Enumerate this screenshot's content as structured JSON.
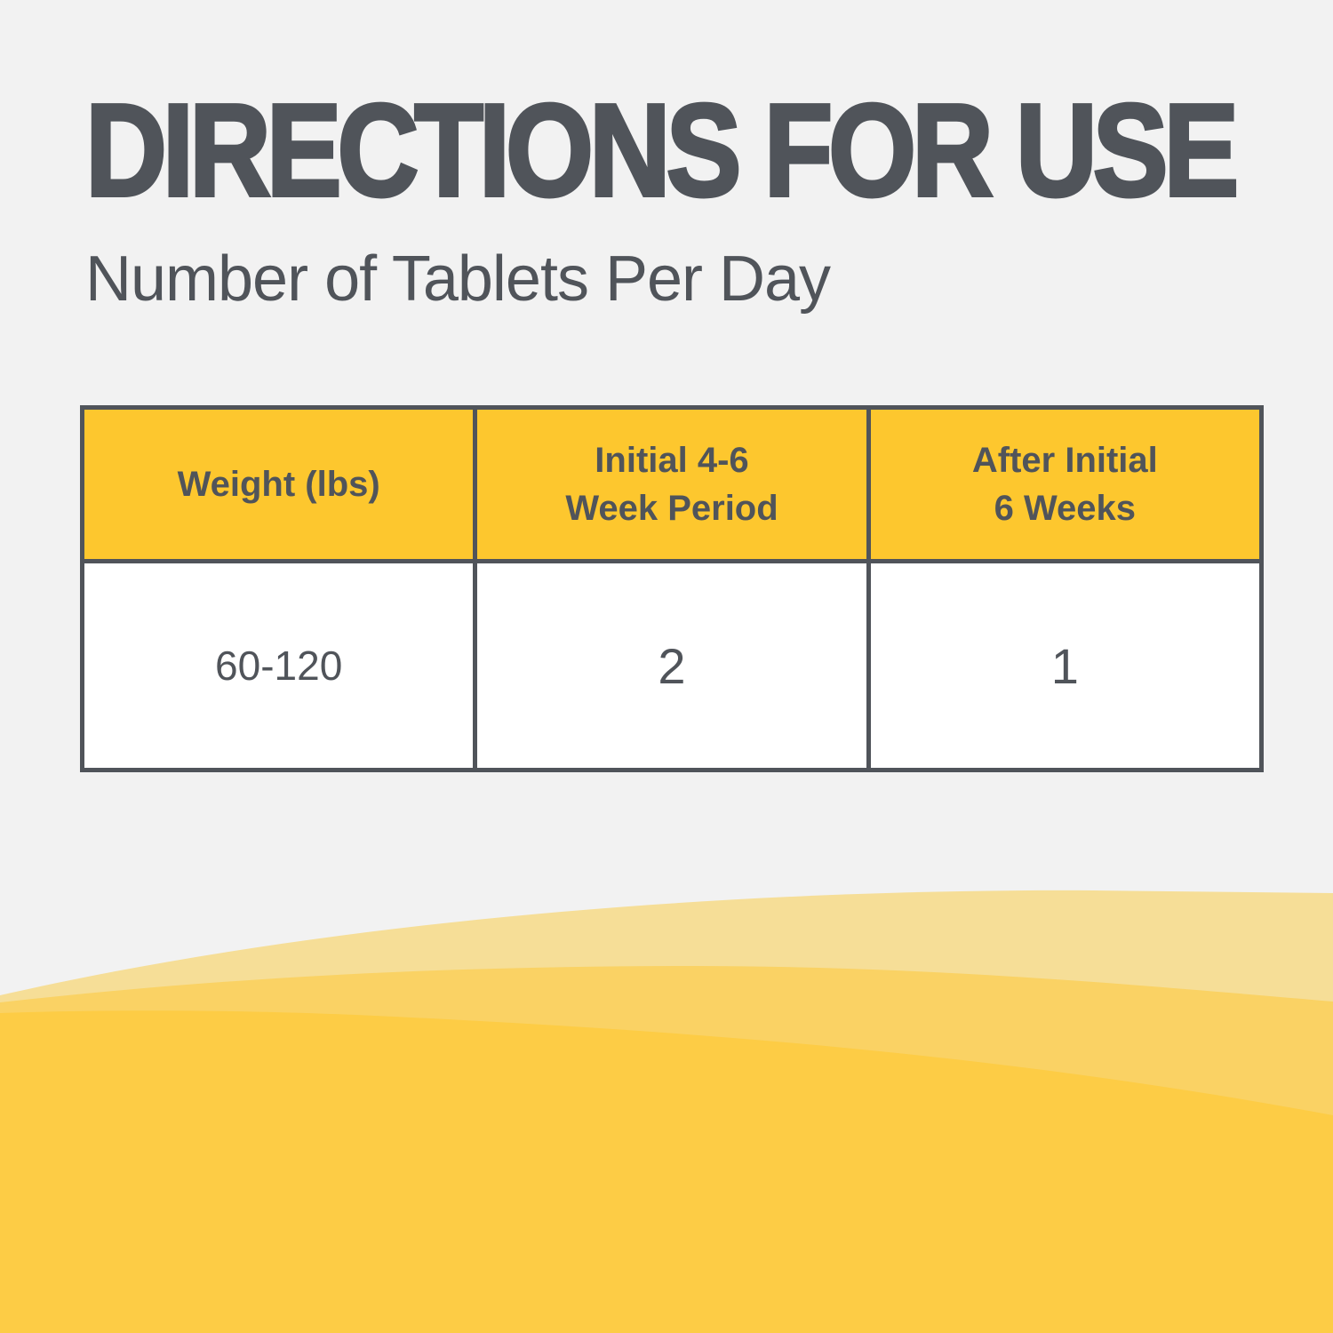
{
  "title": "DIRECTIONS FOR USE",
  "subtitle": "Number of Tablets Per Day",
  "table": {
    "headers": [
      {
        "line1": "Weight (lbs)",
        "line2": ""
      },
      {
        "line1": "Initial 4-6",
        "line2": "Week Period"
      },
      {
        "line1": "After Initial",
        "line2": "6 Weeks"
      }
    ],
    "rows": [
      [
        "60-120",
        "2",
        "1"
      ]
    ]
  },
  "colors": {
    "background": "#f2f2f2",
    "header": "#fdc72e",
    "text": "#50545a",
    "wave_light": "#f6de97",
    "wave_mid": "#fad264",
    "wave_dark": "#fdcc45"
  }
}
